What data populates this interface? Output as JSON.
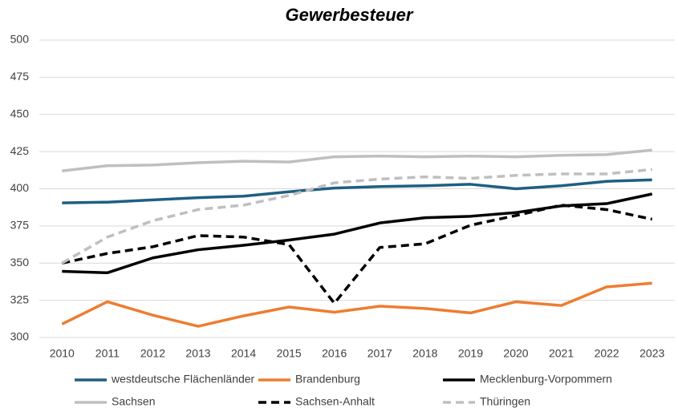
{
  "chart_data": {
    "type": "line",
    "title": "Gewerbesteuer",
    "categories": [
      "2010",
      "2011",
      "2012",
      "2013",
      "2014",
      "2015",
      "2016",
      "2017",
      "2018",
      "2019",
      "2020",
      "2021",
      "2022",
      "2023"
    ],
    "ylim": [
      300,
      500
    ],
    "yticks": [
      300,
      325,
      350,
      375,
      400,
      425,
      450,
      475,
      500
    ],
    "grid": true,
    "series": [
      {
        "name": "westdeutsche Flächenländer",
        "color": "#1f5f82",
        "line_style": "solid",
        "values": [
          390.5,
          391,
          392.5,
          394,
          395,
          398,
          400.5,
          401.5,
          402,
          403,
          400,
          402,
          405,
          406
        ]
      },
      {
        "name": "Brandenburg",
        "color": "#ed7d31",
        "line_style": "solid",
        "values": [
          309,
          324,
          315,
          307.5,
          314.5,
          320.5,
          317,
          321,
          319.5,
          316.5,
          324,
          321.5,
          334,
          336.5
        ]
      },
      {
        "name": "Mecklenburg-Vorpommern",
        "color": "#000000",
        "line_style": "solid",
        "values": [
          344.5,
          343.5,
          353.5,
          359,
          362,
          365.5,
          369.5,
          377,
          380.5,
          381.5,
          384,
          388.5,
          390,
          396.5
        ]
      },
      {
        "name": "Sachsen",
        "color": "#bfbfbf",
        "line_style": "solid",
        "values": [
          412,
          415.5,
          416,
          417.5,
          418.5,
          418,
          421.5,
          422,
          421.5,
          422,
          421.5,
          422.5,
          423,
          426
        ]
      },
      {
        "name": "Sachsen-Anhalt",
        "color": "#000000",
        "line_style": "dashed",
        "values": [
          350,
          356.5,
          361,
          368.5,
          367.5,
          362.5,
          323,
          360.5,
          363,
          375.5,
          382,
          389,
          386,
          379.5
        ]
      },
      {
        "name": "Thüringen",
        "color": "#bfbfbf",
        "line_style": "dashed",
        "values": [
          350,
          367.5,
          378.5,
          386,
          389,
          395.5,
          404,
          406.5,
          408,
          407,
          409,
          410,
          410,
          413
        ]
      }
    ]
  }
}
